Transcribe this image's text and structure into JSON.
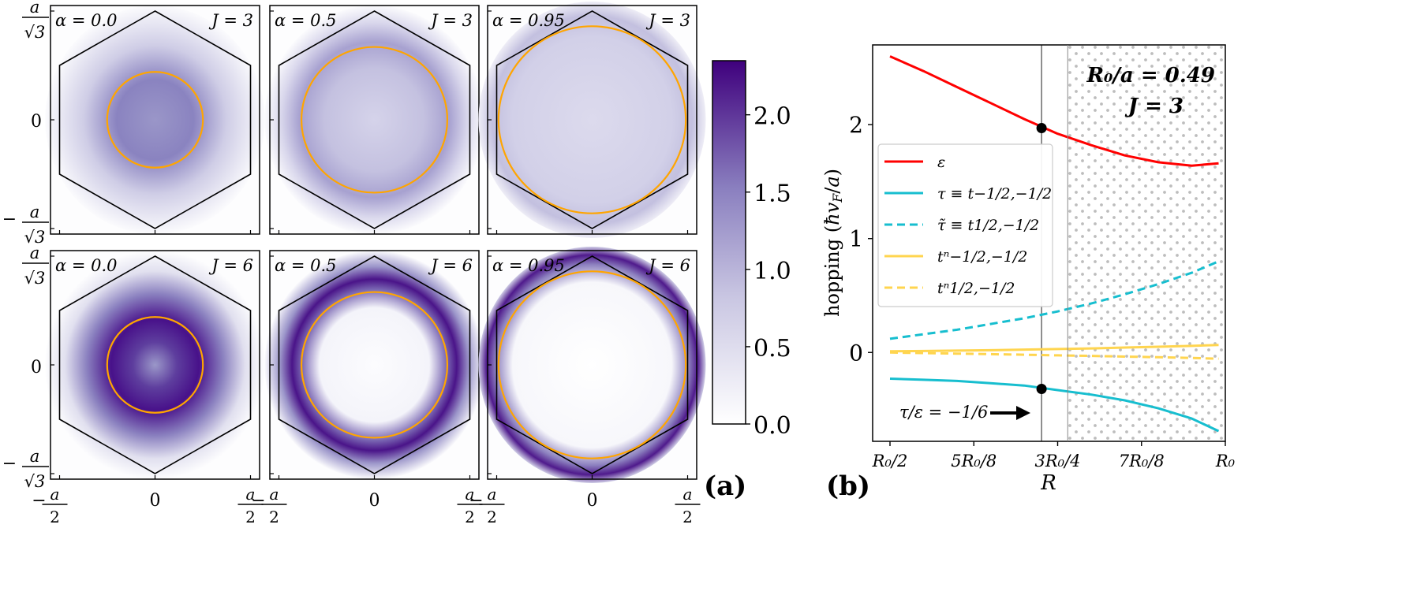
{
  "panel_a": {
    "label": "(a)",
    "x_ticks": [
      "-a/2",
      "0",
      "a/2"
    ],
    "y_ticks": [
      "a/√3",
      "0",
      "-a/√3"
    ],
    "maps": [
      {
        "alpha_label": "α = 0.0",
        "j_label": "J = 3",
        "alpha": 0.0,
        "J": 3
      },
      {
        "alpha_label": "α = 0.5",
        "j_label": "J = 3",
        "alpha": 0.5,
        "J": 3
      },
      {
        "alpha_label": "α = 0.95",
        "j_label": "J = 3",
        "alpha": 0.95,
        "J": 3
      },
      {
        "alpha_label": "α = 0.0",
        "j_label": "J = 6",
        "alpha": 0.0,
        "J": 6
      },
      {
        "alpha_label": "α = 0.5",
        "j_label": "J = 6",
        "alpha": 0.5,
        "J": 6
      },
      {
        "alpha_label": "α = 0.95",
        "j_label": "J = 6",
        "alpha": 0.95,
        "J": 6
      }
    ],
    "colorbar": {
      "min": 0.0,
      "max": 2.35,
      "ticks": [
        "0.0",
        "0.5",
        "1.0",
        "1.5",
        "2.0"
      ],
      "tick_values": [
        0.0,
        0.5,
        1.0,
        1.5,
        2.0
      ],
      "low_color": "#ffffff",
      "high_color": "#3f007d"
    },
    "circle_color": "#ffa500",
    "hexagon_color": "#000000"
  },
  "chart_data": {
    "type": "line",
    "label": "(b)",
    "xlabel": "R",
    "ylabel": "hopping (ħv_F/a)",
    "xlim": [
      0.5,
      1.0
    ],
    "ylim": [
      -0.78,
      2.7
    ],
    "x_ticks": [
      {
        "value": 0.5,
        "label": "R₀/2"
      },
      {
        "value": 0.625,
        "label": "5R₀/8"
      },
      {
        "value": 0.75,
        "label": "3R₀/4"
      },
      {
        "value": 0.875,
        "label": "7R₀/8"
      },
      {
        "value": 1.0,
        "label": "R₀"
      }
    ],
    "y_ticks": [
      {
        "value": 0,
        "label": "0"
      },
      {
        "value": 1,
        "label": "1"
      },
      {
        "value": 2,
        "label": "2"
      }
    ],
    "annotation_params": [
      "R₀/a = 0.49",
      "J = 3"
    ],
    "shaded_region_start": 0.765,
    "vertical_line_x": 0.726,
    "markers": [
      {
        "x": 0.726,
        "y": 1.97
      },
      {
        "x": 0.726,
        "y": -0.32
      }
    ],
    "arrow_label": "τ/ε = −1/6",
    "x": [
      0.5,
      0.55,
      0.6,
      0.65,
      0.7,
      0.75,
      0.8,
      0.85,
      0.9,
      0.95,
      0.99
    ],
    "series": [
      {
        "name": "ε",
        "color": "#ff0000",
        "dash": false,
        "values": [
          2.6,
          2.47,
          2.33,
          2.19,
          2.05,
          1.92,
          1.82,
          1.73,
          1.67,
          1.64,
          1.66
        ]
      },
      {
        "name": "τ ≡ t−1/2,−1/2",
        "color": "#17becf",
        "dash": false,
        "values": [
          -0.23,
          -0.24,
          -0.25,
          -0.27,
          -0.29,
          -0.33,
          -0.37,
          -0.42,
          -0.49,
          -0.58,
          -0.69
        ]
      },
      {
        "name": "τ̃ ≡ t1/2,−1/2",
        "color": "#17becf",
        "dash": true,
        "values": [
          0.12,
          0.16,
          0.2,
          0.25,
          0.3,
          0.36,
          0.43,
          0.51,
          0.6,
          0.7,
          0.8
        ]
      },
      {
        "name": "tⁿ−1/2,−1/2",
        "color": "#ffd54f",
        "dash": false,
        "values": [
          0.01,
          0.013,
          0.016,
          0.02,
          0.025,
          0.03,
          0.036,
          0.043,
          0.05,
          0.058,
          0.066
        ]
      },
      {
        "name": "tⁿ1/2,−1/2",
        "color": "#ffd54f",
        "dash": true,
        "values": [
          0.0,
          -0.005,
          -0.01,
          -0.015,
          -0.02,
          -0.025,
          -0.03,
          -0.036,
          -0.042,
          -0.048,
          -0.055
        ]
      }
    ]
  }
}
